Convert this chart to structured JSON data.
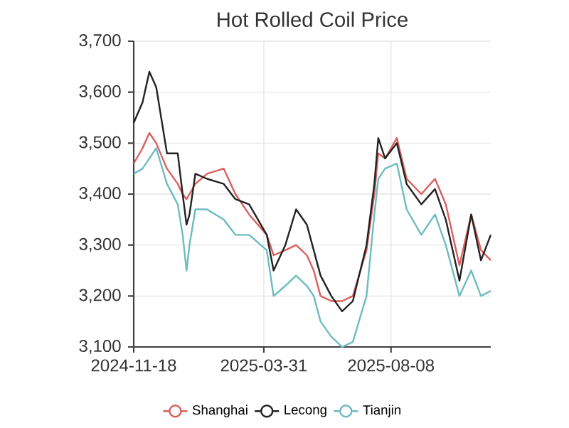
{
  "chart_data": {
    "type": "line",
    "title": "Hot Rolled Coil Price",
    "x": [
      "2024-11-18",
      "2024-11-27",
      "2024-12-04",
      "2024-12-11",
      "2024-12-22",
      "2025-01-02",
      "2025-01-07",
      "2025-01-11",
      "2025-01-14",
      "2025-01-20",
      "2025-02-01",
      "2025-02-18",
      "2025-03-02",
      "2025-03-16",
      "2025-04-03",
      "2025-04-10",
      "2025-04-22",
      "2025-05-03",
      "2025-05-14",
      "2025-05-21",
      "2025-05-28",
      "2025-06-08",
      "2025-06-19",
      "2025-06-30",
      "2025-07-14",
      "2025-07-22",
      "2025-07-26",
      "2025-08-02",
      "2025-08-14",
      "2025-08-24",
      "2025-09-08",
      "2025-09-22",
      "2025-10-03",
      "2025-10-17",
      "2025-10-29",
      "2025-11-08",
      "2025-11-18"
    ],
    "series": [
      {
        "name": "Shanghai",
        "color": "#d9605e",
        "values": [
          3460,
          3490,
          3520,
          3500,
          3450,
          3420,
          3400,
          3390,
          3400,
          3420,
          3440,
          3450,
          3400,
          3360,
          3320,
          3280,
          3290,
          3300,
          3280,
          3250,
          3200,
          3190,
          3190,
          3200,
          3290,
          3400,
          3480,
          3470,
          3510,
          3430,
          3400,
          3430,
          3380,
          3260,
          3360,
          3290,
          3270
        ]
      },
      {
        "name": "Lecong",
        "color": "#222222",
        "values": [
          3540,
          3580,
          3640,
          3610,
          3480,
          3480,
          3400,
          3340,
          3360,
          3440,
          3430,
          3420,
          3390,
          3380,
          3320,
          3250,
          3300,
          3370,
          3340,
          3290,
          3240,
          3200,
          3170,
          3190,
          3300,
          3420,
          3510,
          3470,
          3500,
          3420,
          3380,
          3410,
          3350,
          3230,
          3360,
          3270,
          3320
        ]
      },
      {
        "name": "Tianjin",
        "color": "#6cbcc0",
        "values": [
          3440,
          3450,
          3470,
          3490,
          3420,
          3380,
          3320,
          3250,
          3300,
          3370,
          3370,
          3350,
          3320,
          3320,
          3290,
          3200,
          3220,
          3240,
          3220,
          3200,
          3150,
          3120,
          3100,
          3110,
          3200,
          3360,
          3430,
          3450,
          3460,
          3370,
          3320,
          3360,
          3300,
          3200,
          3250,
          3200,
          3210
        ]
      }
    ],
    "xlim": [
      "2024-11-18",
      "2025-11-18"
    ],
    "xticks": [
      "2024-11-18",
      "2025-03-31",
      "2025-08-08"
    ],
    "ylim": [
      3100,
      3700
    ],
    "yticks": [
      {
        "value": 3100,
        "label": "3,100"
      },
      {
        "value": 3200,
        "label": "3,200"
      },
      {
        "value": 3300,
        "label": "3,300"
      },
      {
        "value": 3400,
        "label": "3,400"
      },
      {
        "value": 3500,
        "label": "3,500"
      },
      {
        "value": 3600,
        "label": "3,600"
      },
      {
        "value": 3700,
        "label": "3,700"
      }
    ],
    "grid": true,
    "legend": "bottom",
    "line_style": "solid"
  }
}
